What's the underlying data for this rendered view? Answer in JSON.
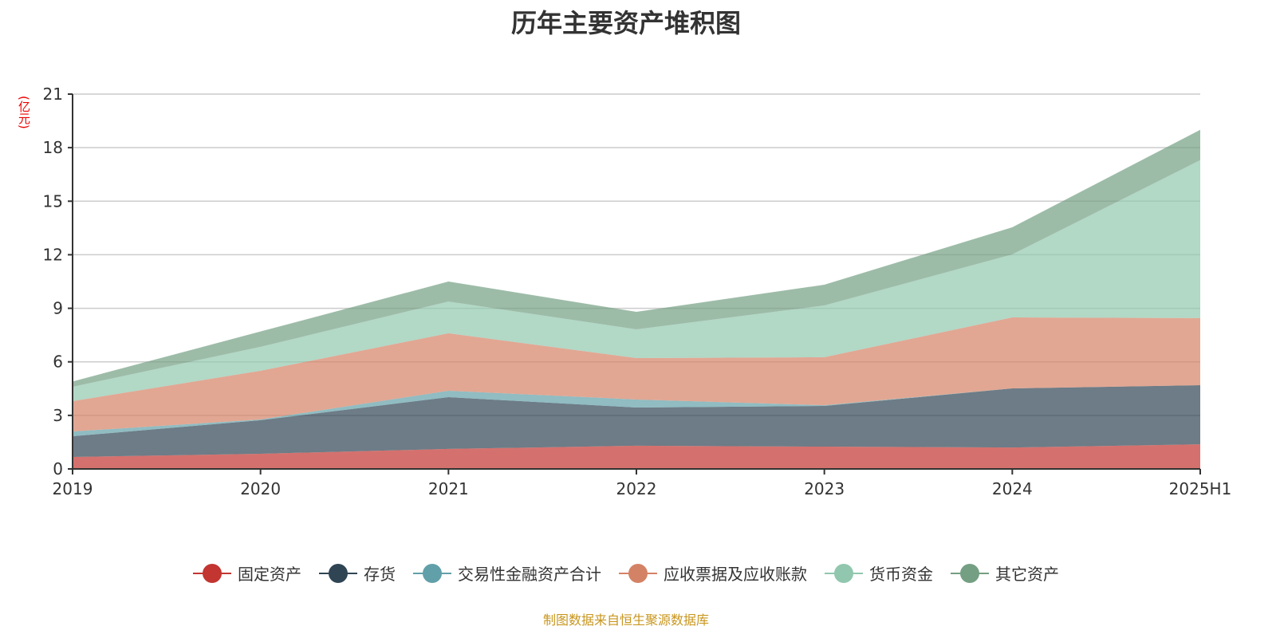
{
  "chart_data": {
    "type": "area",
    "stacked": true,
    "title": "历年主要资产堆积图",
    "ylabel": "(亿元)",
    "ylim": [
      0,
      21
    ],
    "yticks": [
      0,
      3,
      6,
      9,
      12,
      15,
      18,
      21
    ],
    "grid": true,
    "legend_position": "bottom",
    "categories": [
      "2019",
      "2020",
      "2021",
      "2022",
      "2023",
      "2024",
      "2025H1"
    ],
    "series": [
      {
        "name": "固定资产",
        "color": "#c23531",
        "values": [
          0.67,
          0.85,
          1.12,
          1.3,
          1.25,
          1.2,
          1.38
        ]
      },
      {
        "name": "存货",
        "color": "#2f4554",
        "values": [
          1.16,
          1.88,
          2.9,
          2.14,
          2.28,
          3.31,
          3.31
        ]
      },
      {
        "name": "交易性金融资产合计",
        "color": "#61a0a8",
        "values": [
          0.27,
          0.04,
          0.36,
          0.45,
          0.04,
          0.0,
          0.0
        ]
      },
      {
        "name": "应收票据及应收账款",
        "color": "#d48265",
        "values": [
          1.7,
          2.73,
          3.22,
          2.32,
          2.69,
          3.98,
          3.76
        ]
      },
      {
        "name": "货币资金",
        "color": "#91c7ae",
        "values": [
          0.8,
          1.34,
          1.78,
          1.61,
          2.9,
          3.53,
          8.85
        ]
      },
      {
        "name": "其它资产",
        "color": "#749f83",
        "values": [
          0.3,
          0.86,
          1.12,
          0.98,
          1.16,
          1.52,
          1.7
        ]
      }
    ]
  },
  "source": "制图数据来自恒生聚源数据库"
}
